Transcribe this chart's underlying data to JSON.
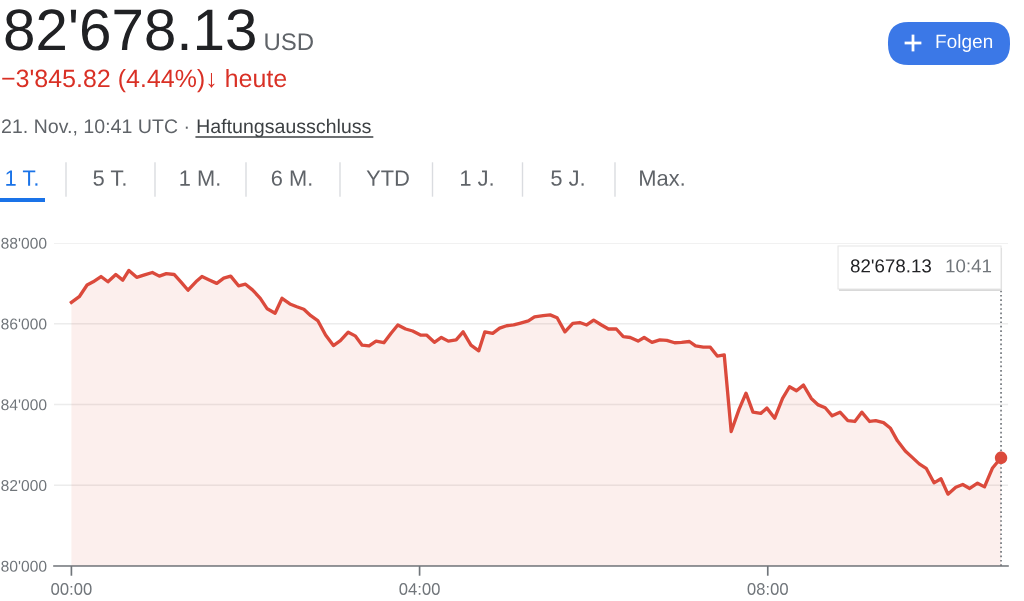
{
  "chart_data": {
    "type": "area",
    "title": "82'678.13",
    "subtitle": "−3'845.82 (4.44%)↓ heute",
    "annotations": [
      "USD",
      "21. Nov., 10:41 UTC ·",
      "Haftungsausschluss",
      "1 T.",
      "5 T.",
      "1 M.",
      "6 M.",
      "YTD",
      "1 J.",
      "5 J.",
      "Max.",
      "Folgen",
      "82'678.13",
      "10:41"
    ],
    "series": [
      {
        "color": "#db4a3c",
        "x": [
          0.0,
          0.09,
          0.18,
          0.25,
          0.34,
          0.42,
          0.51,
          0.59,
          0.66,
          0.75,
          0.84,
          0.93,
          1.01,
          1.09,
          1.18,
          1.26,
          1.34,
          1.43,
          1.5,
          1.59,
          1.67,
          1.75,
          1.83,
          1.92,
          2.0,
          2.08,
          2.17,
          2.25,
          2.34,
          2.42,
          2.51,
          2.59,
          2.67,
          2.75,
          2.83,
          2.92,
          3.01,
          3.09,
          3.18,
          3.26,
          3.34,
          3.42,
          3.5,
          3.59,
          3.67,
          3.75,
          3.84,
          3.92,
          4.01,
          4.08,
          4.17,
          4.25,
          4.33,
          4.42,
          4.5,
          4.59,
          4.68,
          4.75,
          4.84,
          4.92,
          5.0,
          5.08,
          5.15,
          5.25,
          5.32,
          5.42,
          5.5,
          5.58,
          5.67,
          5.76,
          5.84,
          5.92,
          6.0,
          6.09,
          6.17,
          6.26,
          6.34,
          6.42,
          6.51,
          6.58,
          6.67,
          6.76,
          6.84,
          6.93,
          7.01,
          7.1,
          7.17,
          7.26,
          7.34,
          7.42,
          7.5,
          7.58,
          7.67,
          7.75,
          7.83,
          7.92,
          7.99,
          8.08,
          8.17,
          8.25,
          8.33,
          8.41,
          8.5,
          8.58,
          8.66,
          8.74,
          8.83,
          8.92,
          9.0,
          9.08,
          9.17,
          9.24,
          9.33,
          9.41,
          9.49,
          9.58,
          9.66,
          9.74,
          9.82,
          9.91,
          9.99,
          10.07,
          10.16,
          10.24,
          10.32,
          10.41,
          10.49,
          10.58,
          10.68
        ],
        "values": [
          86530,
          86670,
          86960,
          87040,
          87170,
          87040,
          87220,
          87080,
          87320,
          87150,
          87210,
          87270,
          87180,
          87240,
          87220,
          87030,
          86830,
          87040,
          87170,
          87080,
          87000,
          87130,
          87180,
          86940,
          86980,
          86840,
          86630,
          86370,
          86260,
          86630,
          86490,
          86420,
          86360,
          86200,
          86080,
          85720,
          85460,
          85580,
          85790,
          85700,
          85470,
          85450,
          85570,
          85530,
          85760,
          85970,
          85870,
          85820,
          85720,
          85720,
          85540,
          85660,
          85570,
          85600,
          85800,
          85470,
          85330,
          85800,
          85760,
          85890,
          85950,
          85970,
          86010,
          86070,
          86170,
          86200,
          86220,
          86150,
          85800,
          86010,
          86030,
          85970,
          86090,
          85970,
          85870,
          85870,
          85680,
          85660,
          85570,
          85660,
          85540,
          85600,
          85590,
          85530,
          85540,
          85560,
          85450,
          85420,
          85420,
          85200,
          85230,
          83330,
          83880,
          84280,
          83810,
          83780,
          83910,
          83660,
          84150,
          84440,
          84340,
          84480,
          84150,
          83990,
          83920,
          83720,
          83810,
          83600,
          83580,
          83810,
          83580,
          83600,
          83550,
          83410,
          83100,
          82850,
          82690,
          82530,
          82420,
          82060,
          82160,
          81780,
          81950,
          82020,
          81920,
          82050,
          81960,
          82420,
          82680
        ]
      },
      {
        "type": "scatter",
        "color": "#db4a3c",
        "marker": "circle",
        "x": [
          10.68
        ],
        "values": [
          82680
        ]
      }
    ],
    "xlim": [
      -0.2,
      10.76
    ],
    "ylim": [
      80000,
      88000
    ],
    "xticks": [
      {
        "value": 0,
        "label": "00:00"
      },
      {
        "value": 4,
        "label": "04:00"
      },
      {
        "value": 8,
        "label": "08:00"
      }
    ],
    "yticks": [
      {
        "value": 80000,
        "label": "80'000"
      },
      {
        "value": 82000,
        "label": "82'000"
      },
      {
        "value": 84000,
        "label": "84'000"
      },
      {
        "value": 86000,
        "label": "86'000"
      },
      {
        "value": 88000,
        "label": "88'000"
      }
    ],
    "grid": "y",
    "ref_lines": [
      {
        "axis": "x",
        "value": 10.68,
        "color": "#70757a",
        "line_style": "dotted"
      }
    ]
  }
}
